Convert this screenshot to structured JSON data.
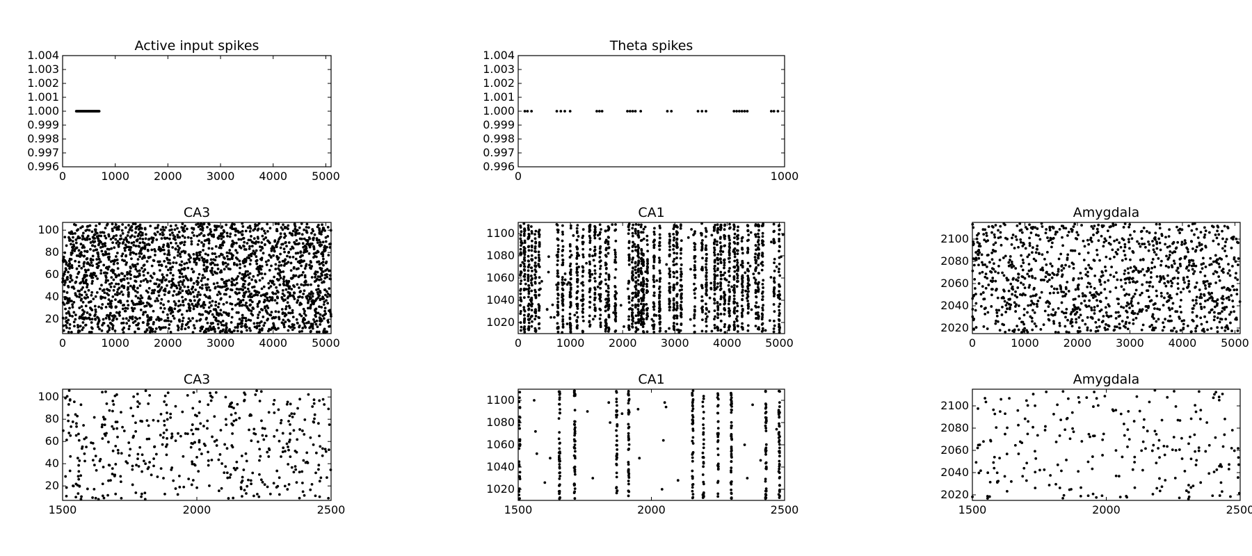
{
  "chart_data": [
    {
      "type": "scatter",
      "title": "Active input spikes",
      "xlim": [
        0,
        5100
      ],
      "ylim": [
        0.996,
        1.004
      ],
      "xticks": [
        0,
        1000,
        2000,
        3000,
        4000,
        5000
      ],
      "xticklabels": [
        "0",
        "1000",
        "2000",
        "3000",
        "4000",
        "5000"
      ],
      "yticks": [
        0.996,
        0.997,
        0.998,
        0.999,
        1.0,
        1.001,
        1.002,
        1.003,
        1.004
      ],
      "yticklabels": [
        "0.996",
        "0.997",
        "0.998",
        "0.999",
        "1.000",
        "1.001",
        "1.002",
        "1.003",
        "1.004"
      ],
      "marker_color": "#000000",
      "series": [
        {
          "x": [
            260,
            275,
            290,
            305,
            320,
            335,
            350,
            365,
            380,
            395,
            410,
            425,
            440,
            455,
            470,
            485,
            500,
            515,
            530,
            545,
            560,
            575,
            590,
            605,
            620,
            635,
            650,
            665,
            680,
            695
          ],
          "y": [
            1,
            1,
            1,
            1,
            1,
            1,
            1,
            1,
            1,
            1,
            1,
            1,
            1,
            1,
            1,
            1,
            1,
            1,
            1,
            1,
            1,
            1,
            1,
            1,
            1,
            1,
            1,
            1,
            1,
            1
          ]
        }
      ]
    },
    {
      "type": "scatter",
      "title": "Theta spikes",
      "xlim": [
        0,
        1000
      ],
      "ylim": [
        0.996,
        1.004
      ],
      "xticks": [
        0,
        1000
      ],
      "xticklabels": [
        "0",
        "1000"
      ],
      "yticks": [
        0.996,
        0.997,
        0.998,
        0.999,
        1.0,
        1.001,
        1.002,
        1.003,
        1.004
      ],
      "yticklabels": [
        "0.996",
        "0.997",
        "0.998",
        "0.999",
        "1.000",
        "1.001",
        "1.002",
        "1.003",
        "1.004"
      ],
      "marker_color": "#000000",
      "series": [
        {
          "x": [
            25,
            35,
            50,
            145,
            160,
            175,
            195,
            295,
            305,
            315,
            410,
            420,
            430,
            440,
            460,
            560,
            575,
            675,
            690,
            705,
            810,
            820,
            830,
            840,
            850,
            860,
            950,
            960,
            975
          ],
          "y": [
            1,
            1,
            1,
            1,
            1,
            1,
            1,
            1,
            1,
            1,
            1,
            1,
            1,
            1,
            1,
            1,
            1,
            1,
            1,
            1,
            1,
            1,
            1,
            1,
            1,
            1,
            1,
            1,
            1
          ]
        }
      ]
    },
    {
      "type": "scatter",
      "title": "CA3",
      "xlim": [
        0,
        5100
      ],
      "ylim": [
        7,
        107
      ],
      "xticks": [
        0,
        1000,
        2000,
        3000,
        4000,
        5000
      ],
      "xticklabels": [
        "0",
        "1000",
        "2000",
        "3000",
        "4000",
        "5000"
      ],
      "yticks": [
        20,
        40,
        60,
        80,
        100
      ],
      "yticklabels": [
        "20",
        "40",
        "60",
        "80",
        "100"
      ],
      "marker_color": "#000000",
      "pattern": "uniform",
      "spike_count": 2400,
      "series": []
    },
    {
      "type": "scatter",
      "title": "CA1",
      "xlim": [
        0,
        5100
      ],
      "ylim": [
        1010,
        1110
      ],
      "xticks": [
        0,
        1000,
        2000,
        3000,
        4000,
        5000
      ],
      "xticklabels": [
        "0",
        "1000",
        "2000",
        "3000",
        "4000",
        "5000"
      ],
      "yticks": [
        1020,
        1040,
        1060,
        1080,
        1100
      ],
      "yticklabels": [
        "1020",
        "1040",
        "1060",
        "1080",
        "1100"
      ],
      "marker_color": "#000000",
      "pattern": "columns",
      "column_x": [
        50,
        120,
        200,
        260,
        330,
        400,
        760,
        850,
        1000,
        1130,
        1240,
        1370,
        1470,
        1570,
        1680,
        1730,
        1860,
        2120,
        2190,
        2250,
        2300,
        2360,
        2400,
        2470,
        2600,
        2710,
        2900,
        2980,
        3040,
        3120,
        3380,
        3520,
        3600,
        3760,
        3820,
        3880,
        3950,
        4040,
        4140,
        4200,
        4290,
        4400,
        4550,
        4600,
        4680,
        4900,
        5000
      ],
      "sparse_count": 150,
      "series": []
    },
    {
      "type": "scatter",
      "title": "Amygdala",
      "xlim": [
        0,
        5100
      ],
      "ylim": [
        2015,
        2115
      ],
      "xticks": [
        0,
        1000,
        2000,
        3000,
        4000,
        5000
      ],
      "xticklabels": [
        "0",
        "1000",
        "2000",
        "3000",
        "4000",
        "5000"
      ],
      "yticks": [
        2020,
        2040,
        2060,
        2080,
        2100
      ],
      "yticklabels": [
        "2020",
        "2040",
        "2060",
        "2080",
        "2100"
      ],
      "marker_color": "#000000",
      "pattern": "uniform",
      "spike_count": 1200,
      "series": []
    },
    {
      "type": "scatter",
      "title": "CA3",
      "xlim": [
        1500,
        2500
      ],
      "ylim": [
        7,
        107
      ],
      "xticks": [
        1500,
        2000,
        2500
      ],
      "xticklabels": [
        "1500",
        "2000",
        "2500"
      ],
      "yticks": [
        20,
        40,
        60,
        80,
        100
      ],
      "yticklabels": [
        "20",
        "40",
        "60",
        "80",
        "100"
      ],
      "marker_color": "#000000",
      "pattern": "uniform",
      "spike_count": 470,
      "series": []
    },
    {
      "type": "scatter",
      "title": "CA1",
      "xlim": [
        1500,
        2500
      ],
      "ylim": [
        1010,
        1110
      ],
      "xticks": [
        1500,
        2000,
        2500
      ],
      "xticklabels": [
        "1500",
        "2000",
        "2500"
      ],
      "yticks": [
        1020,
        1040,
        1060,
        1080,
        1100
      ],
      "yticklabels": [
        "1020",
        "1040",
        "1060",
        "1080",
        "1100"
      ],
      "marker_color": "#000000",
      "pattern": "columns",
      "column_x": [
        1505,
        1655,
        1712,
        1870,
        1915,
        2155,
        2195,
        2250,
        2300,
        2430,
        2480
      ],
      "sparse_points": [
        [
          1560,
          1100
        ],
        [
          1565,
          1072
        ],
        [
          1570,
          1052
        ],
        [
          1600,
          1026
        ],
        [
          1620,
          1048
        ],
        [
          1760,
          1090
        ],
        [
          1780,
          1030
        ],
        [
          1840,
          1098
        ],
        [
          1845,
          1080
        ],
        [
          1890,
          1088
        ],
        [
          1950,
          1092
        ],
        [
          1955,
          1048
        ],
        [
          2040,
          1020
        ],
        [
          2045,
          1064
        ],
        [
          2050,
          1098
        ],
        [
          2055,
          1094
        ],
        [
          2100,
          1028
        ],
        [
          2350,
          1060
        ],
        [
          2360,
          1030
        ],
        [
          2380,
          1096
        ],
        [
          2410,
          1046
        ],
        [
          2470,
          1074
        ]
      ],
      "series": []
    },
    {
      "type": "scatter",
      "title": "Amygdala",
      "xlim": [
        1500,
        2500
      ],
      "ylim": [
        2015,
        2115
      ],
      "xticks": [
        1500,
        2000,
        2500
      ],
      "xticklabels": [
        "1500",
        "2000",
        "2500"
      ],
      "yticks": [
        2020,
        2040,
        2060,
        2080,
        2100
      ],
      "yticklabels": [
        "2020",
        "2040",
        "2060",
        "2080",
        "2100"
      ],
      "marker_color": "#000000",
      "pattern": "uniform",
      "spike_count": 240,
      "series": []
    }
  ]
}
